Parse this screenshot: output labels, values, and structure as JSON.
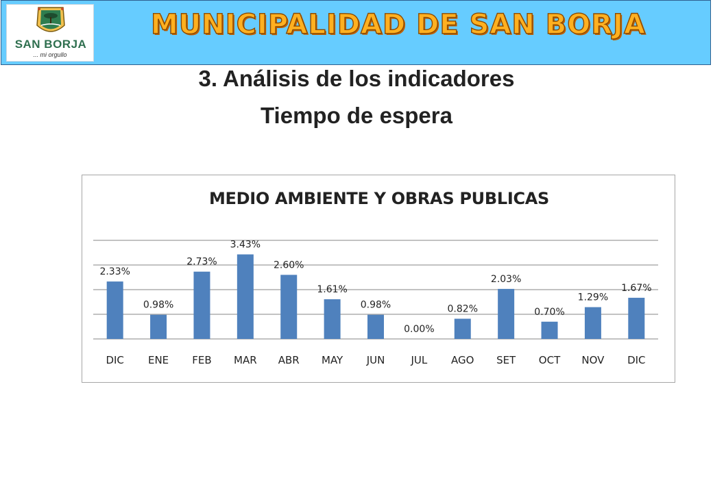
{
  "header": {
    "org_title": "MUNICIPALIDAD DE SAN BORJA",
    "logo": {
      "name": "SAN BORJA",
      "tagline": "... mi orgullo",
      "icon": "san-borja-crest-icon"
    }
  },
  "slide": {
    "title": "3. Análisis de los indicadores",
    "subtitle": "Tiempo de espera"
  },
  "colors": {
    "banner": "#66ccff",
    "banner_text": "#ffb020",
    "bar": "#4f81bd",
    "gridline": "#868686"
  },
  "chart_data": {
    "type": "bar",
    "title": "MEDIO AMBIENTE Y OBRAS PUBLICAS",
    "xlabel": "",
    "ylabel": "",
    "categories": [
      "DIC",
      "ENE",
      "FEB",
      "MAR",
      "ABR",
      "MAY",
      "JUN",
      "JUL",
      "AGO",
      "SET",
      "OCT",
      "NOV",
      "DIC"
    ],
    "values": [
      2.33,
      0.98,
      2.73,
      3.43,
      2.6,
      1.61,
      0.98,
      0.0,
      0.82,
      2.03,
      0.7,
      1.29,
      1.67
    ],
    "data_labels": [
      "2.33%",
      "0.98%",
      "2.73%",
      "3.43%",
      "2.60%",
      "1.61%",
      "0.98%",
      "0.00%",
      "0.82%",
      "2.03%",
      "0.70%",
      "1.29%",
      "1.67%"
    ],
    "ylim": [
      0,
      4
    ],
    "y_gridlines": [
      1,
      2,
      3,
      4
    ],
    "y_tick_labels_visible": false,
    "grid": true,
    "legend": "none"
  }
}
